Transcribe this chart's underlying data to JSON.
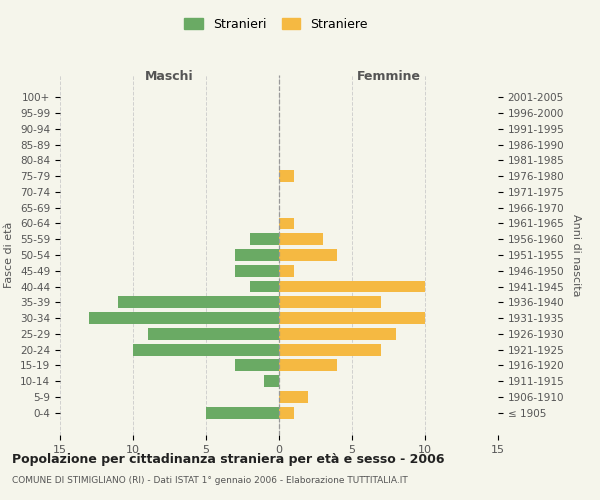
{
  "age_groups": [
    "100+",
    "95-99",
    "90-94",
    "85-89",
    "80-84",
    "75-79",
    "70-74",
    "65-69",
    "60-64",
    "55-59",
    "50-54",
    "45-49",
    "40-44",
    "35-39",
    "30-34",
    "25-29",
    "20-24",
    "15-19",
    "10-14",
    "5-9",
    "0-4"
  ],
  "birth_years": [
    "≤ 1905",
    "1906-1910",
    "1911-1915",
    "1916-1920",
    "1921-1925",
    "1926-1930",
    "1931-1935",
    "1936-1940",
    "1941-1945",
    "1946-1950",
    "1951-1955",
    "1956-1960",
    "1961-1965",
    "1966-1970",
    "1971-1975",
    "1976-1980",
    "1981-1985",
    "1986-1990",
    "1991-1995",
    "1996-2000",
    "2001-2005"
  ],
  "maschi": [
    0,
    0,
    0,
    0,
    0,
    0,
    0,
    0,
    0,
    2,
    3,
    3,
    2,
    11,
    13,
    9,
    10,
    3,
    1,
    0,
    5
  ],
  "femmine": [
    0,
    0,
    0,
    0,
    0,
    1,
    0,
    0,
    1,
    3,
    4,
    1,
    10,
    7,
    10,
    8,
    7,
    4,
    0,
    2,
    1
  ],
  "color_maschi": "#6aaa64",
  "color_femmine": "#f5b942",
  "title": "Popolazione per cittadinanza straniera per età e sesso - 2006",
  "subtitle": "COMUNE DI STIMIGLIANO (RI) - Dati ISTAT 1° gennaio 2006 - Elaborazione TUTTITALIA.IT",
  "xlabel_left": "Maschi",
  "xlabel_right": "Femmine",
  "ylabel_left": "Fasce di età",
  "ylabel_right": "Anni di nascita",
  "legend_maschi": "Stranieri",
  "legend_femmine": "Straniere",
  "xlim": 15,
  "background_color": "#f5f5eb",
  "grid_color": "#cccccc"
}
